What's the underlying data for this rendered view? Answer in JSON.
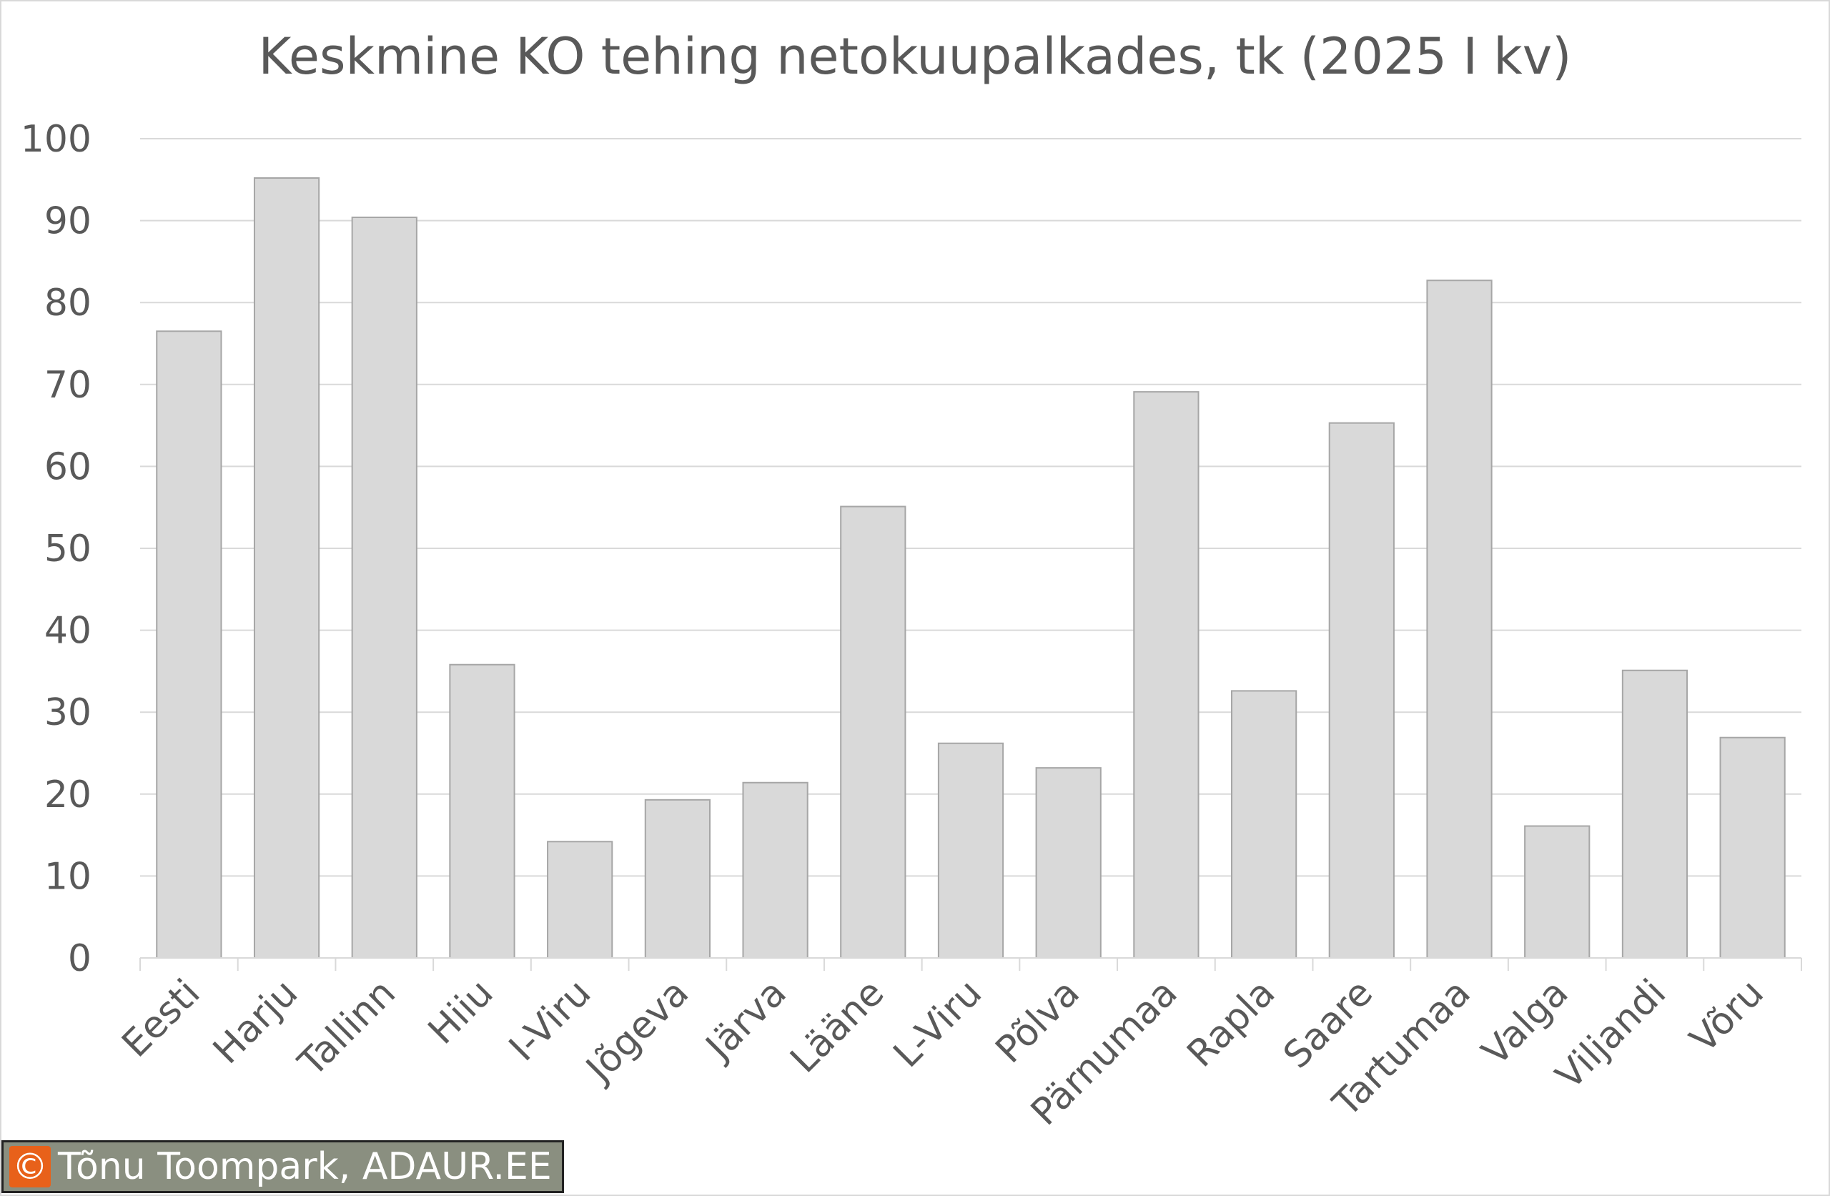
{
  "chart_data": {
    "type": "bar",
    "title": "Keskmine KO tehing netokuupalkades, tk (2025 I kv)",
    "xlabel": "",
    "ylabel": "",
    "ylim": [
      0,
      100
    ],
    "yticks": [
      "0",
      "10",
      "20",
      "30",
      "40",
      "50",
      "60",
      "70",
      "80",
      "90",
      "100"
    ],
    "grid": true,
    "legend": "none",
    "bar_color": "#d9d9d9",
    "bar_border": "#a6a6a6",
    "categories": [
      "Eesti",
      "Harju",
      "Tallinn",
      "Hiiu",
      "I-Viru",
      "Jõgeva",
      "Järva",
      "Lääne",
      "L-Viru",
      "Põlva",
      "Pärnumaa",
      "Rapla",
      "Saare",
      "Tartumaa",
      "Valga",
      "Viljandi",
      "Võru"
    ],
    "values": [
      76.5,
      95.2,
      90.4,
      35.8,
      14.2,
      19.3,
      21.4,
      55.1,
      26.2,
      23.2,
      69.1,
      32.6,
      65.3,
      82.7,
      16.1,
      35.1,
      26.9
    ]
  },
  "credit": {
    "icon": "copyright-icon",
    "symbol": "©",
    "text": "Tõnu Toompark, ADAUR.EE",
    "icon_color": "#e8611a",
    "bg_color": "#8a8f80"
  }
}
